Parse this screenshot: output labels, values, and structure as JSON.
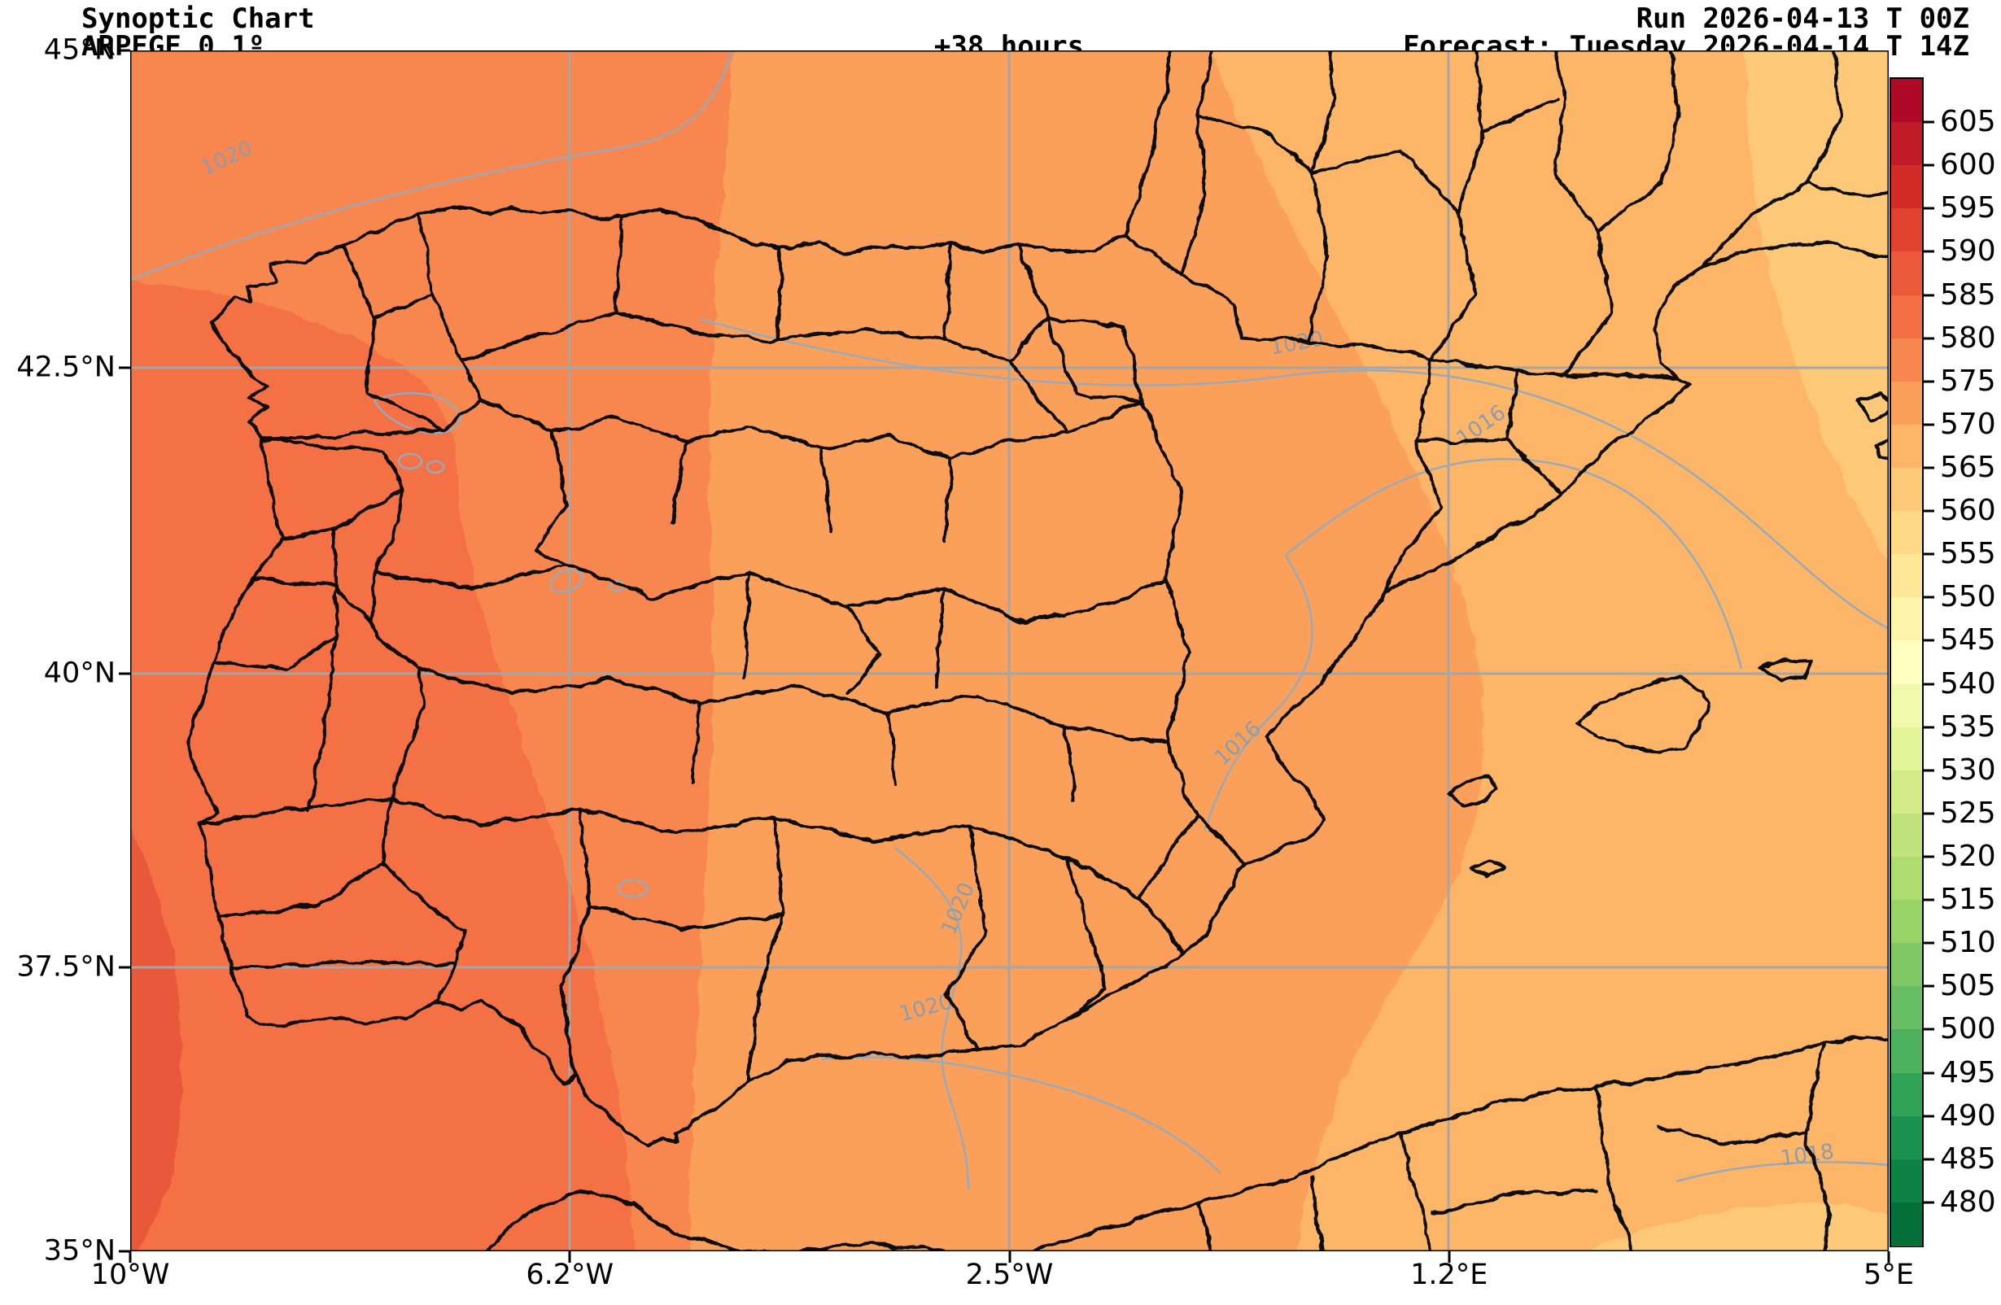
{
  "header": {
    "title": "Synoptic Chart",
    "model": "ARPEGE 0.1º",
    "lead_time": "+38 hours",
    "run": "Run 2026-04-13 T 00Z",
    "forecast": "Forecast: Tuesday 2026-04-14 T 14Z"
  },
  "chart_data": {
    "type": "heatmap",
    "title": "Synoptic Chart",
    "model": "ARPEGE 0.1º",
    "run": "Run 2026-04-13 T 00Z",
    "forecast": "Forecast: Tuesday 2026-04-14 T 14Z",
    "lead_time": "+38 hours",
    "projection": "mercator",
    "region": "Iberian Peninsula",
    "extent": {
      "lon_min": -10,
      "lon_max": 5,
      "lat_min": 35,
      "lat_max": 45
    },
    "x_ticks": [
      "10°W",
      "6.2°W",
      "2.5°W",
      "1.2°E",
      "5°E"
    ],
    "y_ticks": [
      "45°N",
      "42.5°N",
      "40°N",
      "37.5°N",
      "35°N"
    ],
    "grid": true,
    "colorbar": {
      "tick_values": [
        605,
        600,
        595,
        590,
        585,
        580,
        575,
        570,
        565,
        560,
        555,
        550,
        545,
        540,
        535,
        530,
        525,
        520,
        515,
        510,
        505,
        500,
        495,
        490,
        485,
        480
      ],
      "value_min": 475,
      "value_max": 610,
      "step": 5,
      "segment_colors_top_to_bottom": [
        "#ae0926",
        "#c11b27",
        "#d32c27",
        "#e0422f",
        "#ea593a",
        "#f46f44",
        "#f8874f",
        "#fba05a",
        "#fdb567",
        "#fdc877",
        "#feda86",
        "#fee898",
        "#fef4ac",
        "#ffffbf",
        "#f1f9ac",
        "#e3f398",
        "#d3ec87",
        "#c0e47b",
        "#aedc6f",
        "#98d368",
        "#80c866",
        "#68be63",
        "#4db15d",
        "#30a356",
        "#18924e",
        "#0e8245",
        "#056f3a"
      ]
    },
    "fill_bands": [
      {
        "range": "585-590",
        "color": "#ea593a"
      },
      {
        "range": "580-585",
        "color": "#f46f44"
      },
      {
        "range": "575-580",
        "color": "#f8874f"
      },
      {
        "range": "570-575",
        "color": "#fba05a"
      },
      {
        "range": "565-570",
        "color": "#fdb567"
      },
      {
        "range": "560-565",
        "color": "#fdc877"
      }
    ],
    "isobar_labels": [
      {
        "label": "1020",
        "x": 122,
        "y": 140,
        "rot": -25
      },
      {
        "label": "1020",
        "x": 1435,
        "y": 368,
        "rot": -10
      },
      {
        "label": "1016",
        "x": 1665,
        "y": 468,
        "rot": -35
      },
      {
        "label": "1016",
        "x": 1367,
        "y": 858,
        "rot": -42
      },
      {
        "label": "1020",
        "x": 1025,
        "y": 1058,
        "rot": -68
      },
      {
        "label": "1020",
        "x": 980,
        "y": 1185,
        "rot": -15
      },
      {
        "label": "1018",
        "x": 2062,
        "y": 1366,
        "rot": -8
      }
    ]
  },
  "colors": {
    "background": "#ffffff",
    "grid": "#a6a6a6",
    "isobar_line": "#9aa9b8",
    "isobar_label": "#8d9cab",
    "border_line": "#0d0d0d",
    "frame": "#000000"
  }
}
